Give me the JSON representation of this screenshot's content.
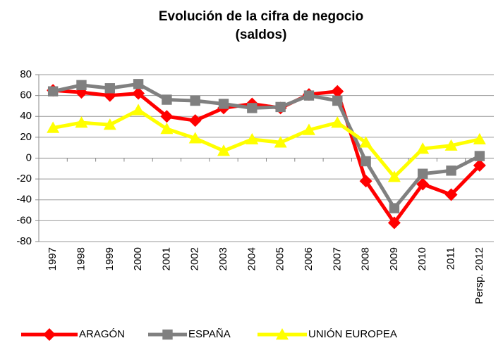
{
  "chart_data": {
    "type": "line",
    "title": "Evolución de la cifra de negocio",
    "subtitle": "(saldos)",
    "categories": [
      "1997",
      "1998",
      "1999",
      "2000",
      "2001",
      "2002",
      "2003",
      "2004",
      "2005",
      "2006",
      "2007",
      "2008",
      "2009",
      "2010",
      "2011",
      "Persp. 2012"
    ],
    "series": [
      {
        "name": "ARAGÓN",
        "color": "#ff0000",
        "marker": "diamond",
        "values": [
          65,
          63,
          60,
          62,
          40,
          36,
          48,
          52,
          48,
          61,
          64,
          -22,
          -62,
          -25,
          -35,
          -7
        ]
      },
      {
        "name": "ESPAÑA",
        "color": "#808080",
        "marker": "square",
        "values": [
          64,
          70,
          67,
          71,
          56,
          55,
          52,
          48,
          49,
          60,
          55,
          -3,
          -48,
          -15,
          -12,
          2
        ]
      },
      {
        "name": "UNIÓN EUROPEA",
        "color": "#ffff00",
        "marker": "triangle",
        "values": [
          29,
          34,
          32,
          46,
          28,
          19,
          7,
          18,
          15,
          27,
          34,
          15,
          -18,
          9,
          12,
          18
        ]
      }
    ],
    "ylim": [
      -80,
      80
    ],
    "yticks": [
      -80,
      -60,
      -40,
      -20,
      0,
      20,
      40,
      60,
      80
    ],
    "grid": true,
    "legend": "bottom"
  }
}
